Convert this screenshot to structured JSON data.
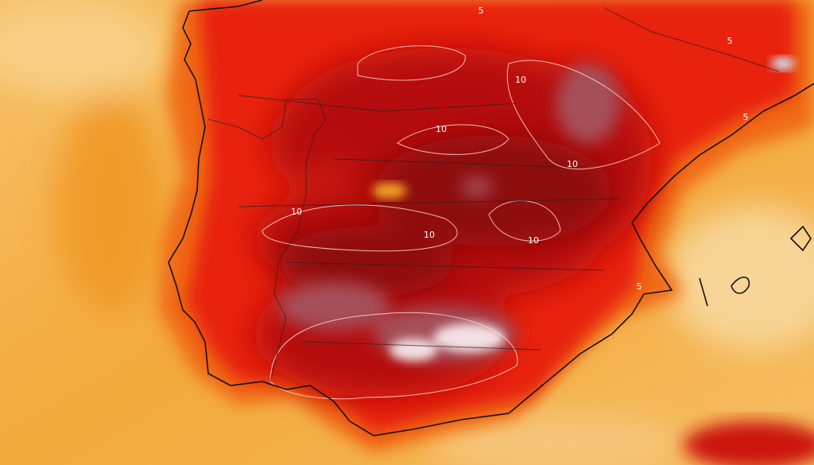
{
  "contour_labels": [
    {
      "text": "5"
    },
    {
      "text": "5"
    },
    {
      "text": "10"
    },
    {
      "text": "10"
    },
    {
      "text": "10"
    },
    {
      "text": "10"
    },
    {
      "text": "10"
    },
    {
      "text": "10"
    },
    {
      "text": "5"
    },
    {
      "text": "5"
    }
  ]
}
